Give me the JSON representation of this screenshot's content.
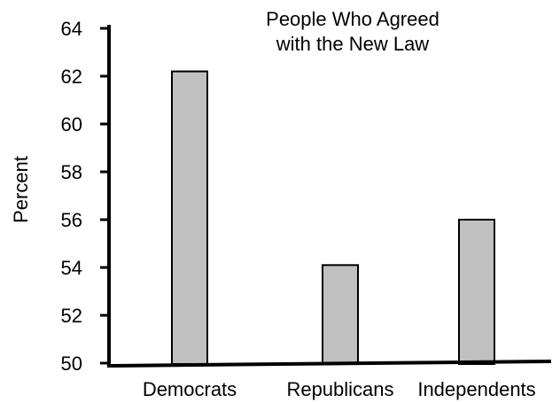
{
  "chart_data": {
    "type": "bar",
    "title_lines": [
      "People Who Agreed",
      "with the New Law"
    ],
    "xlabel": "",
    "ylabel": "Percent",
    "categories": [
      "Democrats",
      "Republicans",
      "Independents"
    ],
    "values": [
      62.2,
      54.1,
      56.0
    ],
    "ylim": [
      50,
      64
    ],
    "yticks": [
      "50",
      "52",
      "54",
      "56",
      "58",
      "60",
      "62",
      "64"
    ],
    "grid": false,
    "legend": "none",
    "bar_color": "#c0c0c0",
    "bar_stroke": "#000000",
    "axis_color": "#000000"
  }
}
